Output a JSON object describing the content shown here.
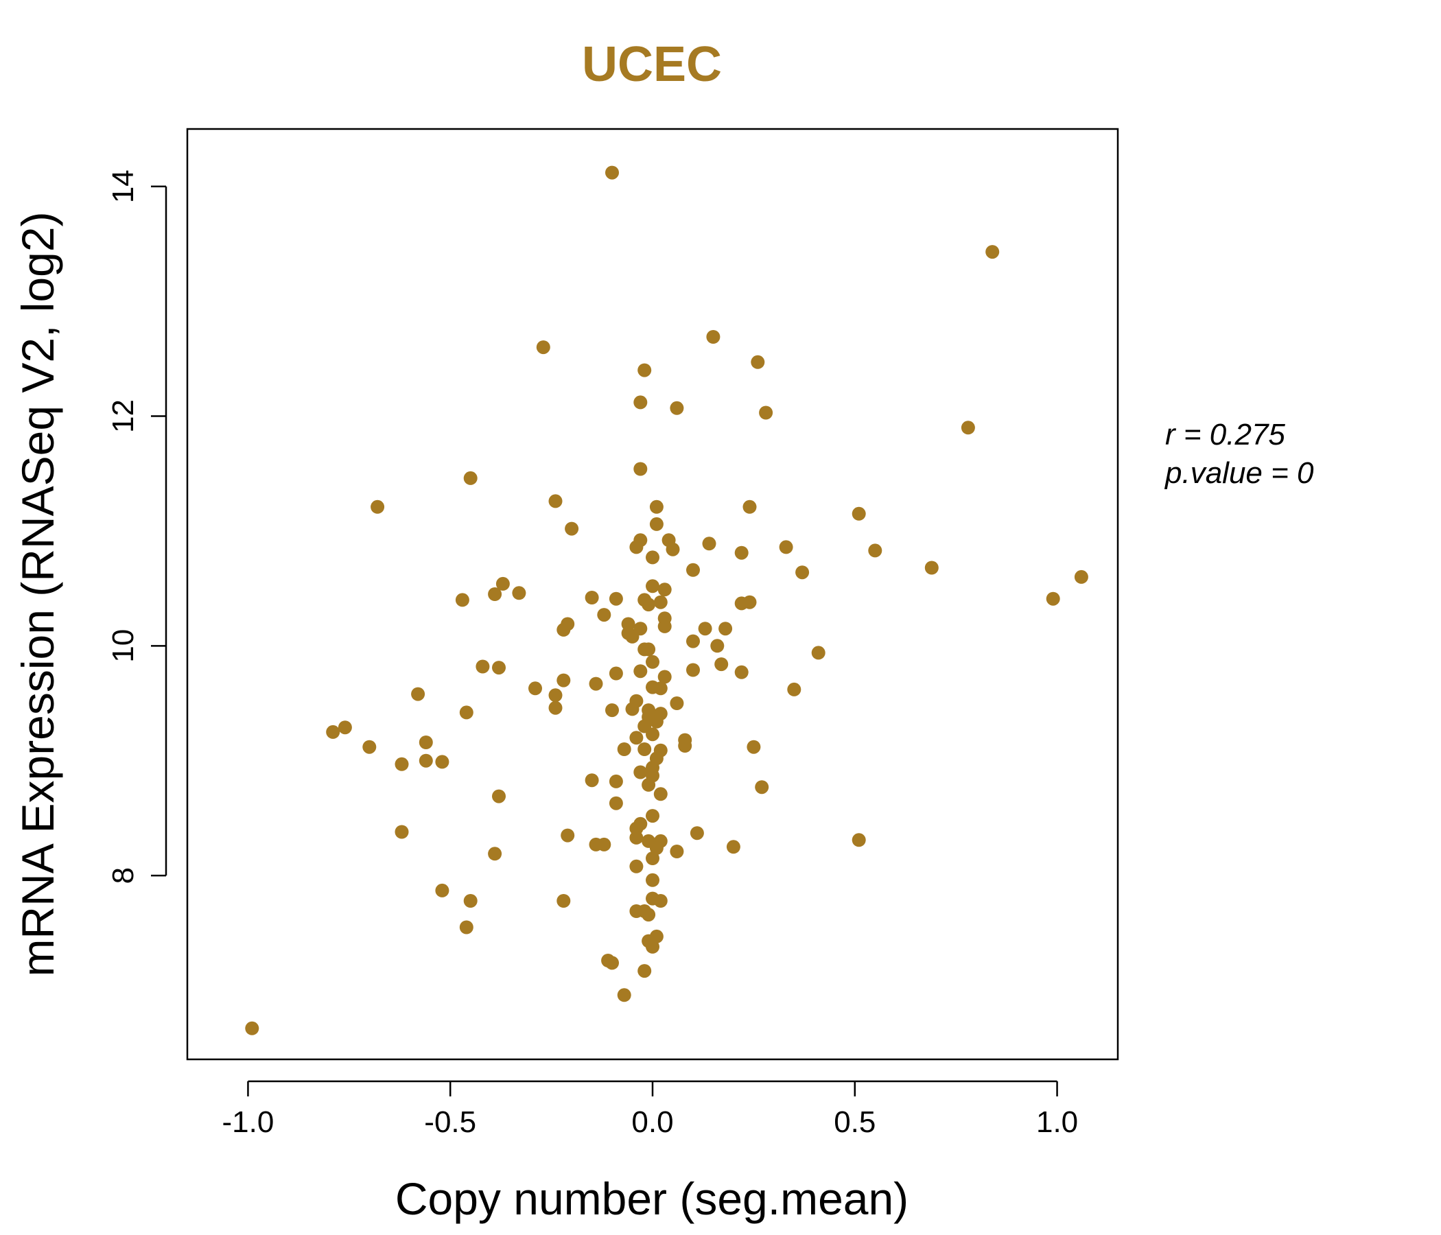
{
  "chart_data": {
    "type": "scatter",
    "title": "UCEC",
    "xlabel": "Copy number (seg.mean)",
    "ylabel": "mRNA Expression (RNASeq V2, log2)",
    "xlim": [
      -1.15,
      1.15
    ],
    "ylim": [
      6.4,
      14.5
    ],
    "x_ticks": [
      -1.0,
      -0.5,
      0.0,
      0.5,
      1.0
    ],
    "x_tick_labels": [
      "-1.0",
      "-0.5",
      "0.0",
      "0.5",
      "1.0"
    ],
    "y_ticks": [
      8,
      10,
      12,
      14
    ],
    "y_tick_labels": [
      "8",
      "10",
      "12",
      "14"
    ],
    "grid": false,
    "legend": "none",
    "annotations": {
      "r_label": "r = 0.275",
      "p_label": "p.value = 0"
    },
    "colors": {
      "points": "#A67A22",
      "title": "#A67A22"
    },
    "points": [
      {
        "x": -0.1,
        "y": 14.12
      },
      {
        "x": 0.84,
        "y": 13.43
      },
      {
        "x": 0.15,
        "y": 12.69
      },
      {
        "x": -0.27,
        "y": 12.6
      },
      {
        "x": 0.26,
        "y": 12.47
      },
      {
        "x": -0.02,
        "y": 12.4
      },
      {
        "x": -0.03,
        "y": 12.12
      },
      {
        "x": 0.06,
        "y": 12.07
      },
      {
        "x": 0.28,
        "y": 12.03
      },
      {
        "x": 0.78,
        "y": 11.9
      },
      {
        "x": -0.03,
        "y": 11.54
      },
      {
        "x": -0.45,
        "y": 11.46
      },
      {
        "x": -0.24,
        "y": 11.26
      },
      {
        "x": 0.24,
        "y": 11.21
      },
      {
        "x": -0.68,
        "y": 11.21
      },
      {
        "x": 0.01,
        "y": 11.21
      },
      {
        "x": 0.51,
        "y": 11.15
      },
      {
        "x": 0.01,
        "y": 11.06
      },
      {
        "x": -0.2,
        "y": 11.02
      },
      {
        "x": -0.03,
        "y": 10.92
      },
      {
        "x": 0.04,
        "y": 10.92
      },
      {
        "x": 0.14,
        "y": 10.89
      },
      {
        "x": -0.04,
        "y": 10.86
      },
      {
        "x": 0.33,
        "y": 10.86
      },
      {
        "x": 0.05,
        "y": 10.84
      },
      {
        "x": 0.55,
        "y": 10.83
      },
      {
        "x": 0.22,
        "y": 10.81
      },
      {
        "x": 0.0,
        "y": 10.77
      },
      {
        "x": 0.69,
        "y": 10.68
      },
      {
        "x": 0.1,
        "y": 10.66
      },
      {
        "x": 0.37,
        "y": 10.64
      },
      {
        "x": 1.06,
        "y": 10.6
      },
      {
        "x": -0.37,
        "y": 10.54
      },
      {
        "x": 0.0,
        "y": 10.52
      },
      {
        "x": 0.03,
        "y": 10.49
      },
      {
        "x": -0.33,
        "y": 10.46
      },
      {
        "x": -0.39,
        "y": 10.45
      },
      {
        "x": -0.15,
        "y": 10.42
      },
      {
        "x": -0.09,
        "y": 10.41
      },
      {
        "x": 0.99,
        "y": 10.41
      },
      {
        "x": -0.47,
        "y": 10.4
      },
      {
        "x": -0.02,
        "y": 10.4
      },
      {
        "x": 0.02,
        "y": 10.38
      },
      {
        "x": 0.22,
        "y": 10.37
      },
      {
        "x": 0.24,
        "y": 10.38
      },
      {
        "x": -0.01,
        "y": 10.36
      },
      {
        "x": -0.12,
        "y": 10.27
      },
      {
        "x": 0.03,
        "y": 10.24
      },
      {
        "x": -0.21,
        "y": 10.19
      },
      {
        "x": -0.06,
        "y": 10.19
      },
      {
        "x": 0.03,
        "y": 10.17
      },
      {
        "x": 0.13,
        "y": 10.15
      },
      {
        "x": -0.22,
        "y": 10.14
      },
      {
        "x": -0.03,
        "y": 10.15
      },
      {
        "x": 0.18,
        "y": 10.15
      },
      {
        "x": -0.06,
        "y": 10.11
      },
      {
        "x": -0.05,
        "y": 10.08
      },
      {
        "x": 0.1,
        "y": 10.04
      },
      {
        "x": 0.16,
        "y": 10.0
      },
      {
        "x": -0.02,
        "y": 9.97
      },
      {
        "x": 0.41,
        "y": 9.94
      },
      {
        "x": -0.01,
        "y": 9.97
      },
      {
        "x": 0.0,
        "y": 9.86
      },
      {
        "x": 0.17,
        "y": 9.84
      },
      {
        "x": -0.42,
        "y": 9.82
      },
      {
        "x": -0.38,
        "y": 9.81
      },
      {
        "x": 0.1,
        "y": 9.79
      },
      {
        "x": -0.03,
        "y": 9.78
      },
      {
        "x": 0.22,
        "y": 9.77
      },
      {
        "x": -0.09,
        "y": 9.76
      },
      {
        "x": 0.03,
        "y": 9.73
      },
      {
        "x": -0.22,
        "y": 9.7
      },
      {
        "x": -0.14,
        "y": 9.67
      },
      {
        "x": 0.0,
        "y": 9.64
      },
      {
        "x": -0.29,
        "y": 9.63
      },
      {
        "x": 0.35,
        "y": 9.62
      },
      {
        "x": 0.02,
        "y": 9.63
      },
      {
        "x": -0.58,
        "y": 9.58
      },
      {
        "x": -0.24,
        "y": 9.57
      },
      {
        "x": -0.04,
        "y": 9.52
      },
      {
        "x": 0.06,
        "y": 9.5
      },
      {
        "x": -0.24,
        "y": 9.46
      },
      {
        "x": -0.05,
        "y": 9.45
      },
      {
        "x": -0.01,
        "y": 9.44
      },
      {
        "x": -0.1,
        "y": 9.44
      },
      {
        "x": -0.46,
        "y": 9.42
      },
      {
        "x": 0.02,
        "y": 9.41
      },
      {
        "x": -0.01,
        "y": 9.38
      },
      {
        "x": 0.01,
        "y": 9.34
      },
      {
        "x": -0.02,
        "y": 9.3
      },
      {
        "x": -0.76,
        "y": 9.29
      },
      {
        "x": -0.79,
        "y": 9.25
      },
      {
        "x": 0.0,
        "y": 9.23
      },
      {
        "x": -0.04,
        "y": 9.2
      },
      {
        "x": 0.08,
        "y": 9.18
      },
      {
        "x": -0.56,
        "y": 9.16
      },
      {
        "x": 0.08,
        "y": 9.13
      },
      {
        "x": 0.25,
        "y": 9.12
      },
      {
        "x": -0.7,
        "y": 9.12
      },
      {
        "x": -0.02,
        "y": 9.1
      },
      {
        "x": -0.07,
        "y": 9.1
      },
      {
        "x": 0.02,
        "y": 9.09
      },
      {
        "x": 0.01,
        "y": 9.02
      },
      {
        "x": -0.56,
        "y": 9.0
      },
      {
        "x": -0.52,
        "y": 8.99
      },
      {
        "x": -0.62,
        "y": 8.97
      },
      {
        "x": 0.0,
        "y": 8.94
      },
      {
        "x": -0.03,
        "y": 8.9
      },
      {
        "x": 0.0,
        "y": 8.87
      },
      {
        "x": -0.15,
        "y": 8.83
      },
      {
        "x": -0.09,
        "y": 8.82
      },
      {
        "x": -0.01,
        "y": 8.79
      },
      {
        "x": 0.27,
        "y": 8.77
      },
      {
        "x": 0.02,
        "y": 8.71
      },
      {
        "x": -0.38,
        "y": 8.69
      },
      {
        "x": -0.09,
        "y": 8.63
      },
      {
        "x": 0.0,
        "y": 8.52
      },
      {
        "x": -0.03,
        "y": 8.45
      },
      {
        "x": -0.04,
        "y": 8.41
      },
      {
        "x": -0.62,
        "y": 8.38
      },
      {
        "x": 0.11,
        "y": 8.37
      },
      {
        "x": -0.21,
        "y": 8.35
      },
      {
        "x": -0.04,
        "y": 8.33
      },
      {
        "x": 0.51,
        "y": 8.31
      },
      {
        "x": 0.02,
        "y": 8.3
      },
      {
        "x": -0.01,
        "y": 8.3
      },
      {
        "x": -0.12,
        "y": 8.27
      },
      {
        "x": -0.14,
        "y": 8.27
      },
      {
        "x": 0.2,
        "y": 8.25
      },
      {
        "x": 0.01,
        "y": 8.24
      },
      {
        "x": 0.06,
        "y": 8.21
      },
      {
        "x": -0.39,
        "y": 8.19
      },
      {
        "x": 0.0,
        "y": 8.15
      },
      {
        "x": -0.04,
        "y": 8.08
      },
      {
        "x": 0.0,
        "y": 7.96
      },
      {
        "x": -0.52,
        "y": 7.87
      },
      {
        "x": 0.0,
        "y": 7.8
      },
      {
        "x": 0.02,
        "y": 7.78
      },
      {
        "x": -0.22,
        "y": 7.78
      },
      {
        "x": -0.45,
        "y": 7.78
      },
      {
        "x": -0.04,
        "y": 7.69
      },
      {
        "x": -0.02,
        "y": 7.69
      },
      {
        "x": -0.01,
        "y": 7.66
      },
      {
        "x": -0.46,
        "y": 7.55
      },
      {
        "x": 0.01,
        "y": 7.47
      },
      {
        "x": -0.01,
        "y": 7.43
      },
      {
        "x": 0.0,
        "y": 7.38
      },
      {
        "x": -0.11,
        "y": 7.26
      },
      {
        "x": -0.1,
        "y": 7.24
      },
      {
        "x": -0.02,
        "y": 7.17
      },
      {
        "x": -0.07,
        "y": 6.96
      },
      {
        "x": -0.99,
        "y": 6.67
      }
    ]
  }
}
